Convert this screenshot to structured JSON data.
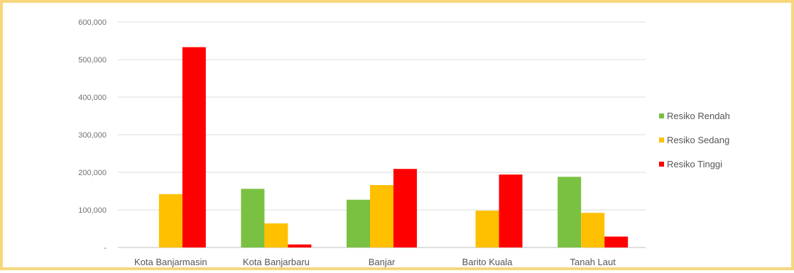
{
  "chart_data": {
    "type": "bar",
    "categories": [
      "Kota Banjarmasin",
      "Kota Banjarbaru",
      "Banjar",
      "Barito Kuala",
      "Tanah Laut"
    ],
    "series": [
      {
        "name": "Resiko Rendah",
        "color": "#7ac142",
        "values": [
          0,
          156000,
          127000,
          0,
          188000
        ]
      },
      {
        "name": "Resiko Sedang",
        "color": "#ffc000",
        "values": [
          142000,
          64000,
          166000,
          98000,
          92000
        ]
      },
      {
        "name": "Resiko Tinggi",
        "color": "#ff0000",
        "values": [
          533000,
          8000,
          209000,
          194000,
          29000
        ]
      }
    ],
    "yticks": [
      "-",
      "100,000",
      "200,000",
      "300,000",
      "400,000",
      "500,000",
      "600,000"
    ],
    "ylim": [
      0,
      600000
    ],
    "grid": true,
    "legend": "right",
    "title": "",
    "xlabel": "",
    "ylabel": ""
  }
}
